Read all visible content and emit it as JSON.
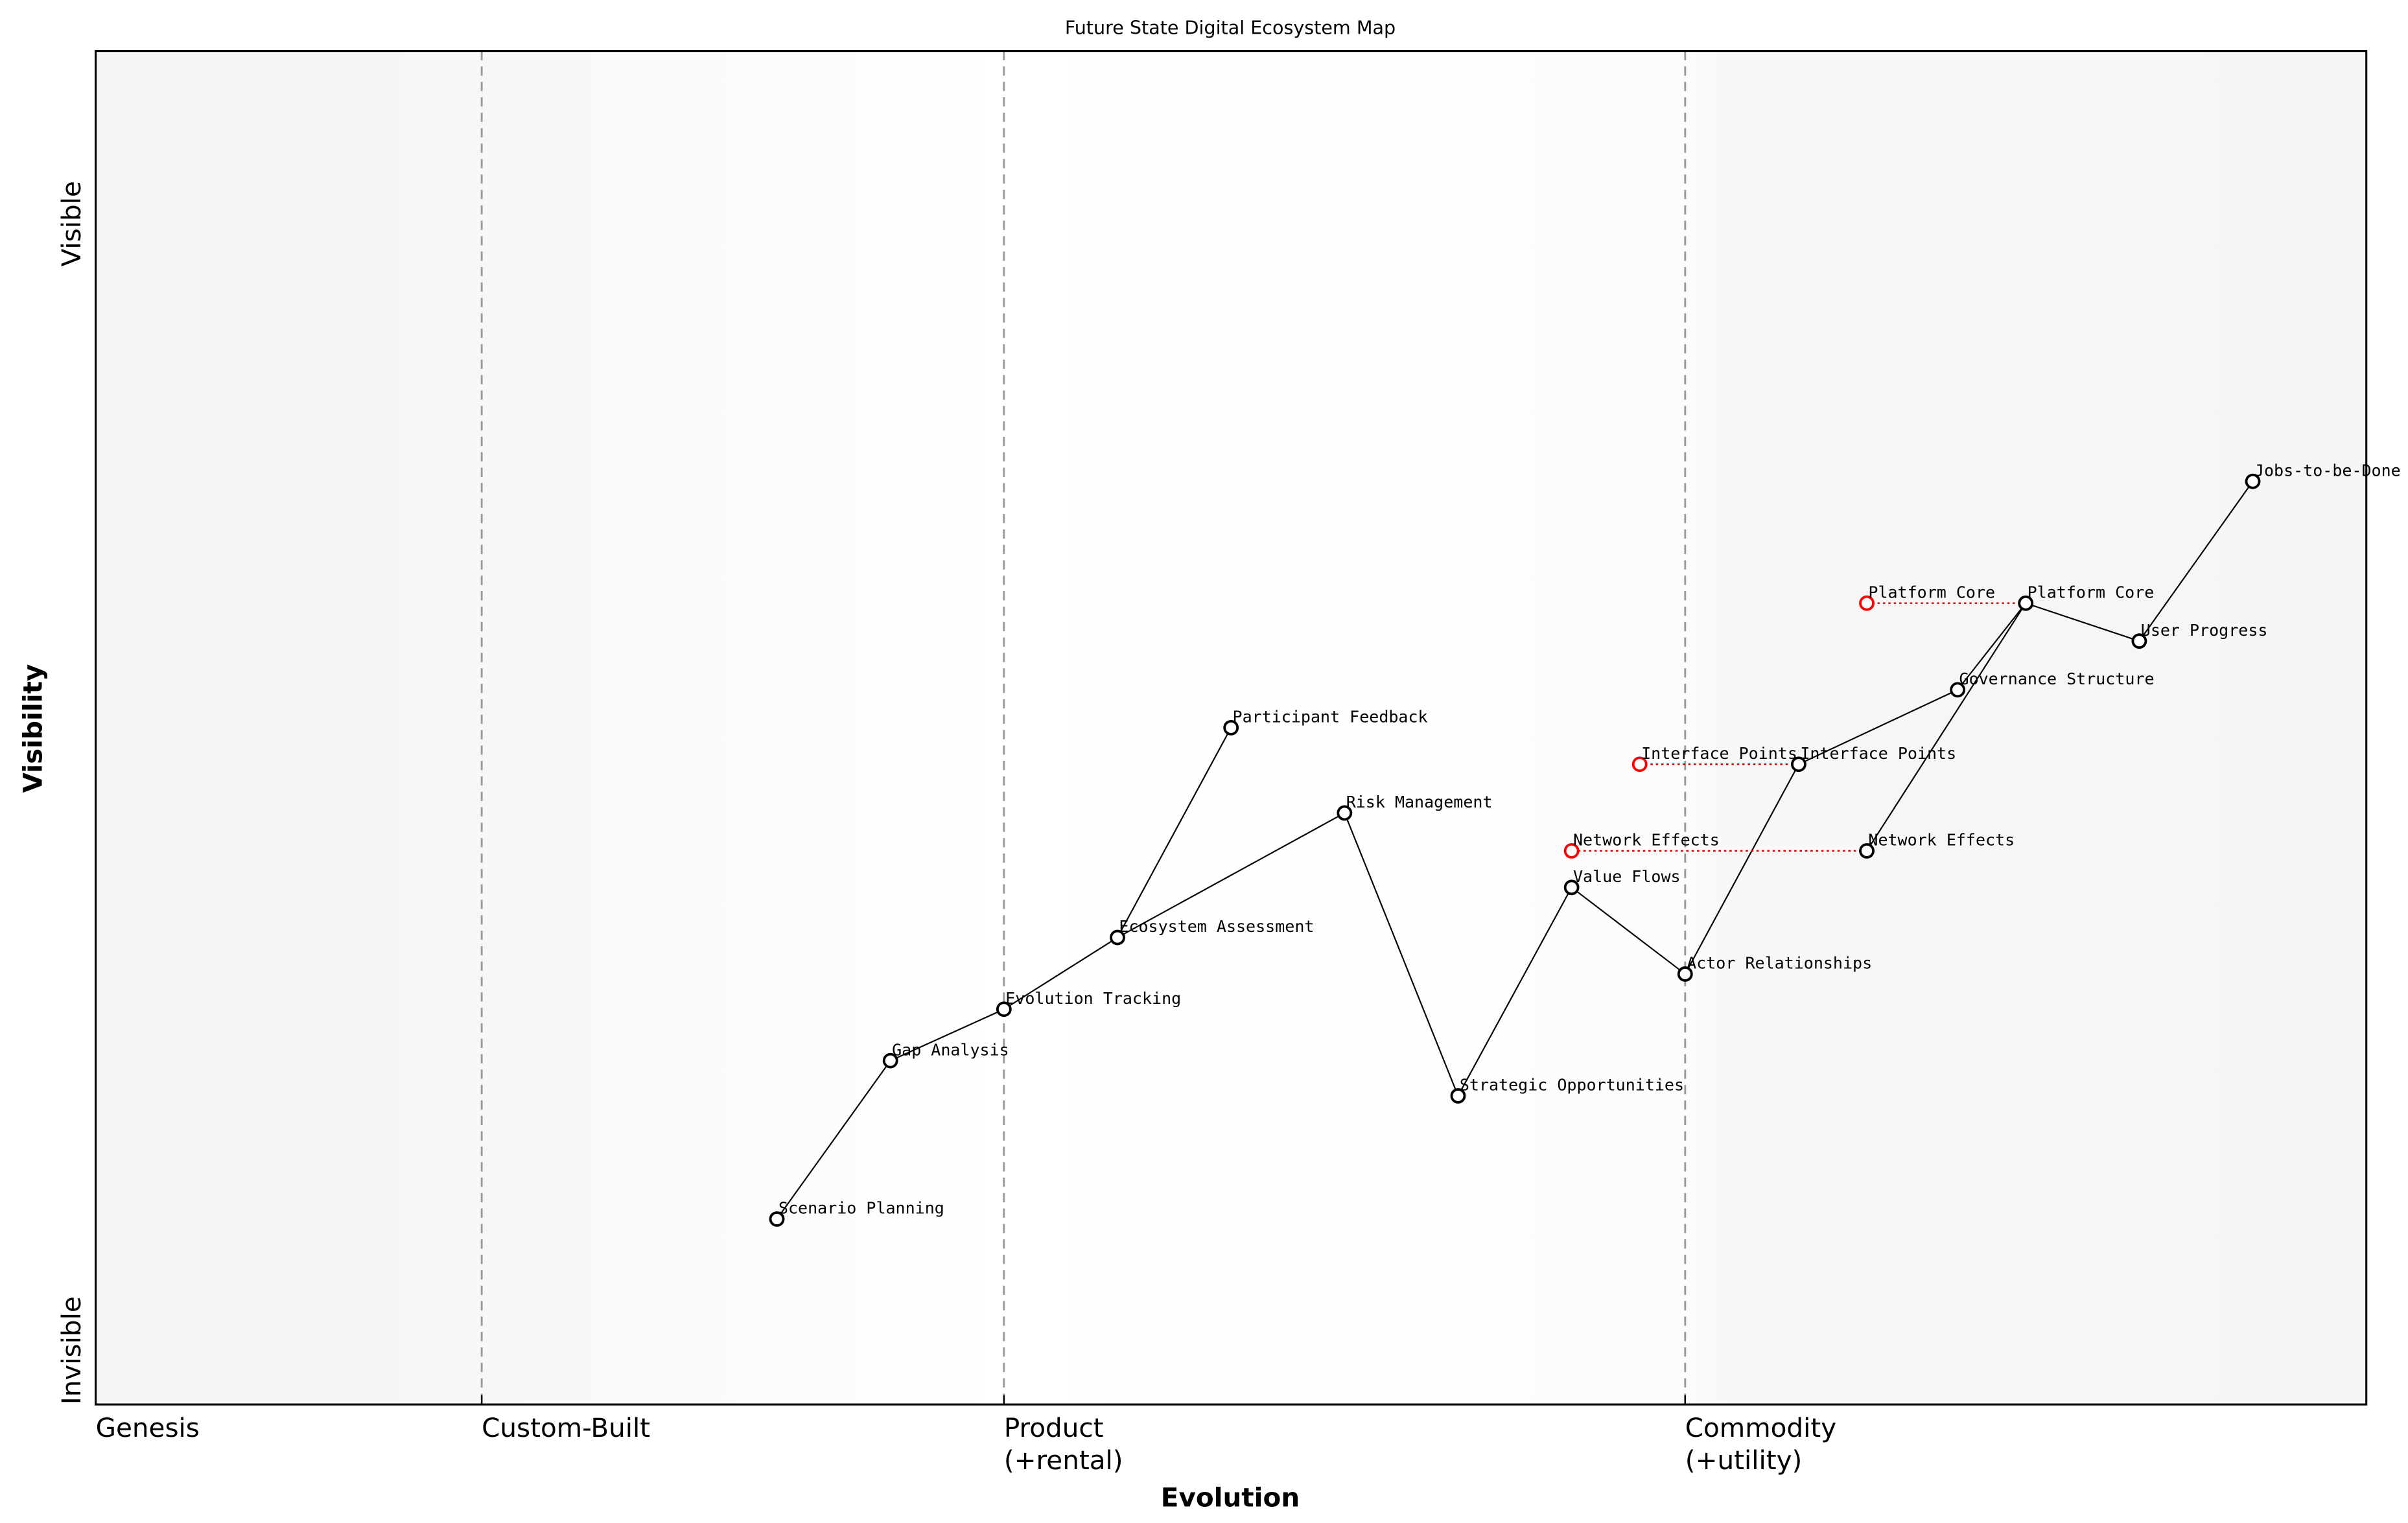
{
  "title": "Future State Digital Ecosystem Map",
  "chart_data": {
    "type": "scatter",
    "title": "Future State Digital Ecosystem Map",
    "xlabel": "Evolution",
    "ylabel": "Visibility",
    "xlim": [
      0,
      1
    ],
    "ylim": [
      0,
      1
    ],
    "x_stages": [
      {
        "label": "Genesis",
        "x": 0
      },
      {
        "label": "Custom-Built",
        "x": 0.17
      },
      {
        "label": "Product\n(+rental)",
        "x": 0.4
      },
      {
        "label": "Commodity\n(+utility)",
        "x": 0.7
      }
    ],
    "y_labels": {
      "top": "Visible",
      "bottom": "Invisible"
    },
    "components": [
      {
        "name": "Scenario Planning",
        "x": 0.3,
        "y": 0.137
      },
      {
        "name": "Gap Analysis",
        "x": 0.35,
        "y": 0.254
      },
      {
        "name": "Evolution Tracking",
        "x": 0.4,
        "y": 0.292
      },
      {
        "name": "Ecosystem Assessment",
        "x": 0.45,
        "y": 0.345
      },
      {
        "name": "Participant Feedback",
        "x": 0.5,
        "y": 0.5
      },
      {
        "name": "Risk Management",
        "x": 0.55,
        "y": 0.437
      },
      {
        "name": "Strategic Opportunities",
        "x": 0.6,
        "y": 0.228
      },
      {
        "name": "Value Flows",
        "x": 0.65,
        "y": 0.382
      },
      {
        "name": "Actor Relationships",
        "x": 0.7,
        "y": 0.318
      },
      {
        "name": "Interface Points",
        "x": 0.75,
        "y": 0.473
      },
      {
        "name": "Network Effects",
        "x": 0.78,
        "y": 0.409
      },
      {
        "name": "Governance Structure",
        "x": 0.82,
        "y": 0.528
      },
      {
        "name": "Platform Core",
        "x": 0.85,
        "y": 0.592
      },
      {
        "name": "User Progress",
        "x": 0.9,
        "y": 0.564
      },
      {
        "name": "Jobs-to-be-Done",
        "x": 0.95,
        "y": 0.682
      }
    ],
    "evolutions": [
      {
        "name": "Platform Core",
        "from_x": 0.85,
        "to_x": 0.78,
        "y": 0.592
      },
      {
        "name": "Interface Points",
        "from_x": 0.75,
        "to_x": 0.68,
        "y": 0.473
      },
      {
        "name": "Network Effects",
        "from_x": 0.78,
        "to_x": 0.65,
        "y": 0.409
      }
    ],
    "links": [
      [
        "Scenario Planning",
        "Gap Analysis"
      ],
      [
        "Gap Analysis",
        "Evolution Tracking"
      ],
      [
        "Evolution Tracking",
        "Ecosystem Assessment"
      ],
      [
        "Ecosystem Assessment",
        "Participant Feedback"
      ],
      [
        "Ecosystem Assessment",
        "Risk Management"
      ],
      [
        "Risk Management",
        "Strategic Opportunities"
      ],
      [
        "Strategic Opportunities",
        "Value Flows"
      ],
      [
        "Value Flows",
        "Actor Relationships"
      ],
      [
        "Actor Relationships",
        "Interface Points"
      ],
      [
        "Interface Points",
        "Governance Structure"
      ],
      [
        "Governance Structure",
        "Platform Core"
      ],
      [
        "Network Effects",
        "Platform Core"
      ],
      [
        "Platform Core",
        "User Progress"
      ],
      [
        "User Progress",
        "Jobs-to-be-Done"
      ]
    ],
    "colors": {
      "component": "#000000",
      "evolved": "#ff0000",
      "evolution_line": "#cc0000",
      "stage_line": "#999999",
      "shade": "#f5f5f5"
    },
    "grid": false,
    "legend": "none"
  }
}
